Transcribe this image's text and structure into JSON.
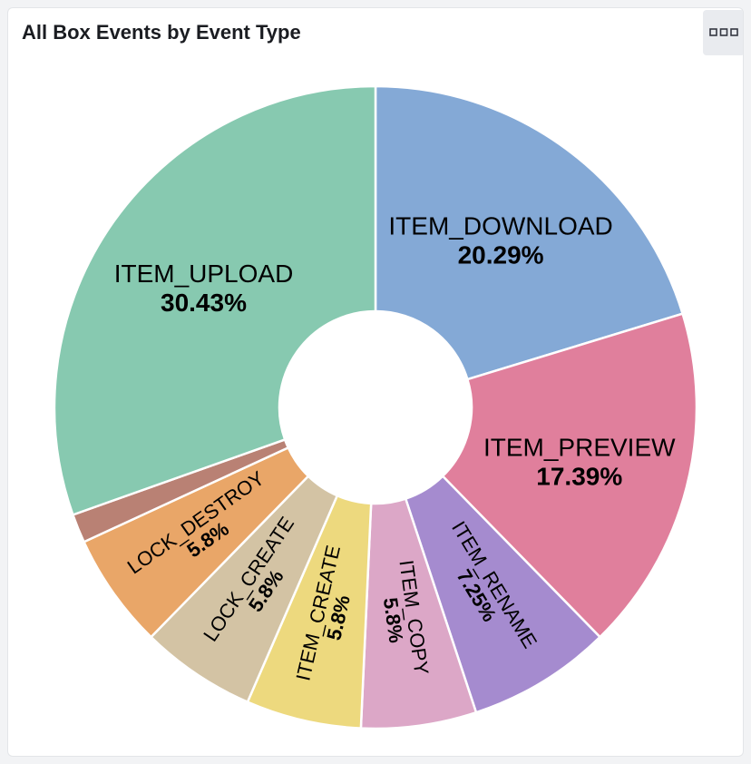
{
  "panel": {
    "title": "All Box Events by Event Type",
    "menu_icon": "ellipsis-icon"
  },
  "chart_data": {
    "type": "pie",
    "donut": true,
    "title": "All Box Events by Event Type",
    "slices": [
      {
        "label": "ITEM_DOWNLOAD",
        "pct_label": "20.29%",
        "value": 20.29,
        "color": "#84a9d6"
      },
      {
        "label": "ITEM_PREVIEW",
        "pct_label": "17.39%",
        "value": 17.39,
        "color": "#e07f9c"
      },
      {
        "label": "ITEM_RENAME",
        "pct_label": "7.25%",
        "value": 7.25,
        "color": "#a58bcf"
      },
      {
        "label": "ITEM_COPY",
        "pct_label": "5.8%",
        "value": 5.8,
        "color": "#dca7c7"
      },
      {
        "label": "ITEM_CREATE",
        "pct_label": "5.8%",
        "value": 5.8,
        "color": "#edd97e"
      },
      {
        "label": "LOCK_CREATE",
        "pct_label": "5.8%",
        "value": 5.8,
        "color": "#d3c3a4"
      },
      {
        "label": "LOCK_DESTROY",
        "pct_label": "5.8%",
        "value": 5.8,
        "color": "#e9a668"
      },
      {
        "label": "",
        "pct_label": "",
        "value": 1.45,
        "color": "#b98174"
      },
      {
        "label": "ITEM_UPLOAD",
        "pct_label": "30.43%",
        "value": 30.43,
        "color": "#87c9b0"
      }
    ]
  }
}
